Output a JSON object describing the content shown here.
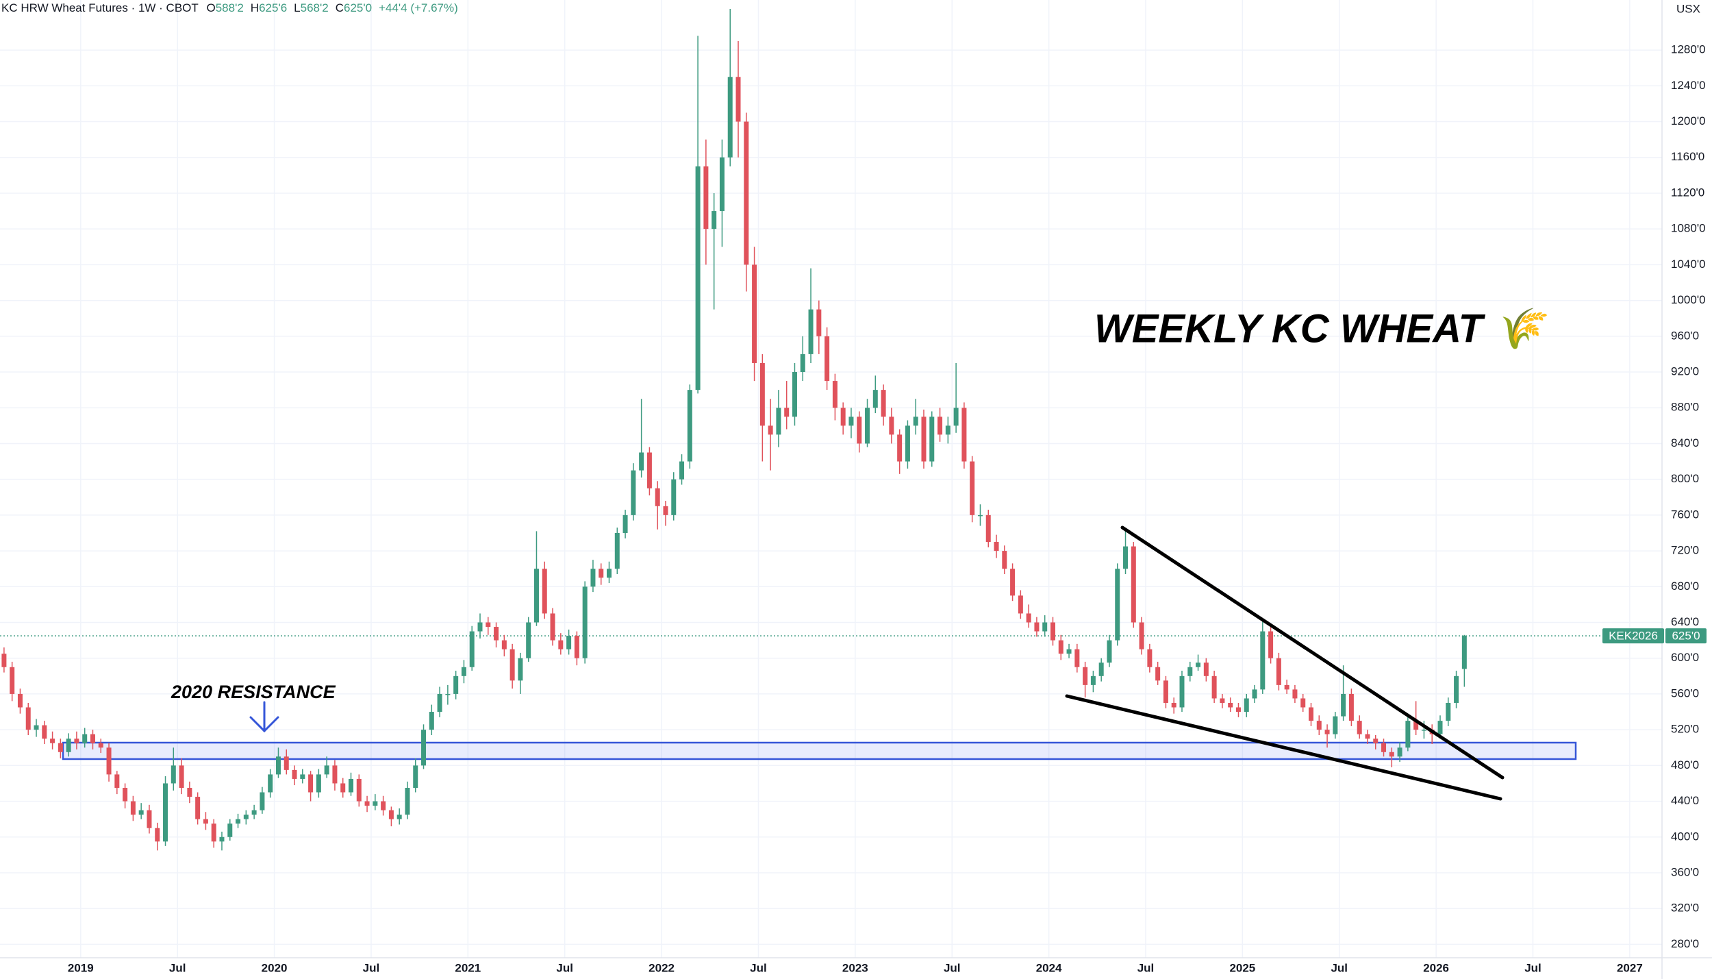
{
  "chart_data": {
    "type": "candlestick",
    "title": "KC HRW Wheat Futures · 1W · CBOT",
    "header_values": [
      {
        "label": "O",
        "text": "588'2"
      },
      {
        "label": "H",
        "text": "625'6"
      },
      {
        "label": "L",
        "text": "568'2"
      },
      {
        "label": "C",
        "text": "625'0"
      }
    ],
    "change": "+44'4 (+7.67%)",
    "unit": "USX",
    "symbol": "KEK2026",
    "last_price": {
      "value": 625,
      "label": "625'0"
    },
    "annotations": [
      "WEEKLY KC WHEAT 🌾",
      "2020 RESISTANCE"
    ],
    "up_color": "#3d9a80",
    "down_color": "#e0525b",
    "grid": true,
    "xlim": [
      "2018-08",
      "2027-03"
    ],
    "xticks": [
      {
        "value": "2019-01",
        "label": "2019"
      },
      {
        "value": "2019-07",
        "label": "Jul"
      },
      {
        "value": "2020-01",
        "label": "2020"
      },
      {
        "value": "2020-07",
        "label": "Jul"
      },
      {
        "value": "2021-01",
        "label": "2021"
      },
      {
        "value": "2021-07",
        "label": "Jul"
      },
      {
        "value": "2022-01",
        "label": "2022"
      },
      {
        "value": "2022-07",
        "label": "Jul"
      },
      {
        "value": "2023-01",
        "label": "2023"
      },
      {
        "value": "2023-07",
        "label": "Jul"
      },
      {
        "value": "2024-01",
        "label": "2024"
      },
      {
        "value": "2024-07",
        "label": "Jul"
      },
      {
        "value": "2025-01",
        "label": "2025"
      },
      {
        "value": "2025-07",
        "label": "Jul"
      },
      {
        "value": "2026-01",
        "label": "2026"
      },
      {
        "value": "2026-07",
        "label": "Jul"
      },
      {
        "value": "2027-01",
        "label": "2027"
      }
    ],
    "ylim": [
      265,
      1336
    ],
    "yticks": [
      {
        "value": 280,
        "label": "280'0"
      },
      {
        "value": 320,
        "label": "320'0"
      },
      {
        "value": 360,
        "label": "360'0"
      },
      {
        "value": 400,
        "label": "400'0"
      },
      {
        "value": 440,
        "label": "440'0"
      },
      {
        "value": 480,
        "label": "480'0"
      },
      {
        "value": 520,
        "label": "520'0"
      },
      {
        "value": 560,
        "label": "560'0"
      },
      {
        "value": 600,
        "label": "600'0"
      },
      {
        "value": 640,
        "label": "640'0"
      },
      {
        "value": 680,
        "label": "680'0"
      },
      {
        "value": 720,
        "label": "720'0"
      },
      {
        "value": 760,
        "label": "760'0"
      },
      {
        "value": 800,
        "label": "800'0"
      },
      {
        "value": 840,
        "label": "840'0"
      },
      {
        "value": 880,
        "label": "880'0"
      },
      {
        "value": 920,
        "label": "920'0"
      },
      {
        "value": 960,
        "label": "960'0"
      },
      {
        "value": 1000,
        "label": "1000'0"
      },
      {
        "value": 1040,
        "label": "1040'0"
      },
      {
        "value": 1080,
        "label": "1080'0"
      },
      {
        "value": 1120,
        "label": "1120'0"
      },
      {
        "value": 1160,
        "label": "1160'0"
      },
      {
        "value": 1200,
        "label": "1200'0"
      },
      {
        "value": 1240,
        "label": "1240'0"
      },
      {
        "value": 1280,
        "label": "1280'0"
      }
    ],
    "x": [
      "2018-08",
      "2018-08",
      "2018-09",
      "2018-09",
      "2018-10",
      "2018-10",
      "2018-11",
      "2018-11",
      "2018-12",
      "2018-12",
      "2019-01",
      "2019-01",
      "2019-02",
      "2019-02",
      "2019-03",
      "2019-03",
      "2019-04",
      "2019-04",
      "2019-05",
      "2019-05",
      "2019-06",
      "2019-06",
      "2019-07",
      "2019-07",
      "2019-08",
      "2019-08",
      "2019-09",
      "2019-09",
      "2019-10",
      "2019-10",
      "2019-11",
      "2019-11",
      "2019-12",
      "2019-12",
      "2020-01",
      "2020-01",
      "2020-02",
      "2020-02",
      "2020-03",
      "2020-03",
      "2020-04",
      "2020-04",
      "2020-05",
      "2020-05",
      "2020-06",
      "2020-06",
      "2020-07",
      "2020-07",
      "2020-08",
      "2020-08",
      "2020-09",
      "2020-09",
      "2020-10",
      "2020-10",
      "2020-11",
      "2020-11",
      "2020-12",
      "2020-12",
      "2021-01",
      "2021-01",
      "2021-02",
      "2021-02",
      "2021-03",
      "2021-03",
      "2021-04",
      "2021-04",
      "2021-05",
      "2021-05",
      "2021-06",
      "2021-06",
      "2021-07",
      "2021-07",
      "2021-08",
      "2021-08",
      "2021-09",
      "2021-09",
      "2021-10",
      "2021-10",
      "2021-11",
      "2021-11",
      "2021-12",
      "2021-12",
      "2022-01",
      "2022-01",
      "2022-02",
      "2022-02",
      "2022-03",
      "2022-03",
      "2022-04",
      "2022-04",
      "2022-05",
      "2022-05",
      "2022-06",
      "2022-06",
      "2022-07",
      "2022-07",
      "2022-08",
      "2022-08",
      "2022-09",
      "2022-09",
      "2022-10",
      "2022-10",
      "2022-11",
      "2022-11",
      "2022-12",
      "2022-12",
      "2023-01",
      "2023-01",
      "2023-02",
      "2023-02",
      "2023-03",
      "2023-03",
      "2023-04",
      "2023-04",
      "2023-05",
      "2023-05",
      "2023-06",
      "2023-06",
      "2023-07",
      "2023-07",
      "2023-08",
      "2023-08",
      "2023-09",
      "2023-09",
      "2023-10",
      "2023-10",
      "2023-11",
      "2023-11",
      "2023-12",
      "2023-12",
      "2024-01",
      "2024-01",
      "2024-02",
      "2024-02",
      "2024-03",
      "2024-03",
      "2024-04",
      "2024-04",
      "2024-05",
      "2024-05",
      "2024-06",
      "2024-06",
      "2024-07",
      "2024-07",
      "2024-08",
      "2024-08",
      "2024-09",
      "2024-09",
      "2024-10",
      "2024-10",
      "2024-11",
      "2024-11",
      "2024-12",
      "2024-12",
      "2025-01",
      "2025-01",
      "2025-02",
      "2025-02",
      "2025-03",
      "2025-03",
      "2025-04",
      "2025-04",
      "2025-05",
      "2025-05",
      "2025-06",
      "2025-06",
      "2025-07",
      "2025-07",
      "2025-08",
      "2025-08",
      "2025-09",
      "2025-09",
      "2025-10",
      "2025-10",
      "2025-11",
      "2025-11",
      "2025-12",
      "2025-12",
      "2026-01",
      "2026-01",
      "2026-02",
      "2026-02"
    ],
    "ohlc": [
      [
        605,
        612,
        584,
        590
      ],
      [
        590,
        596,
        552,
        560
      ],
      [
        560,
        566,
        538,
        545
      ],
      [
        545,
        550,
        514,
        520
      ],
      [
        520,
        532,
        512,
        525
      ],
      [
        525,
        530,
        504,
        510
      ],
      [
        510,
        518,
        498,
        505
      ],
      [
        505,
        510,
        488,
        495
      ],
      [
        495,
        516,
        490,
        510
      ],
      [
        510,
        518,
        498,
        505
      ],
      [
        505,
        522,
        500,
        515
      ],
      [
        515,
        520,
        498,
        505
      ],
      [
        505,
        510,
        494,
        500
      ],
      [
        500,
        505,
        462,
        470
      ],
      [
        470,
        474,
        448,
        455
      ],
      [
        455,
        460,
        432,
        440
      ],
      [
        440,
        446,
        418,
        425
      ],
      [
        425,
        438,
        420,
        430
      ],
      [
        430,
        436,
        404,
        410
      ],
      [
        410,
        416,
        385,
        395
      ],
      [
        395,
        468,
        390,
        460
      ],
      [
        460,
        500,
        452,
        480
      ],
      [
        480,
        488,
        448,
        455
      ],
      [
        455,
        462,
        438,
        445
      ],
      [
        445,
        450,
        414,
        420
      ],
      [
        420,
        428,
        408,
        415
      ],
      [
        415,
        420,
        388,
        395
      ],
      [
        395,
        406,
        385,
        400
      ],
      [
        400,
        420,
        396,
        415
      ],
      [
        415,
        426,
        410,
        420
      ],
      [
        420,
        430,
        414,
        425
      ],
      [
        425,
        436,
        420,
        430
      ],
      [
        430,
        456,
        426,
        450
      ],
      [
        450,
        476,
        444,
        470
      ],
      [
        470,
        500,
        466,
        490
      ],
      [
        490,
        498,
        470,
        475
      ],
      [
        475,
        480,
        458,
        465
      ],
      [
        465,
        476,
        460,
        470
      ],
      [
        470,
        474,
        440,
        450
      ],
      [
        450,
        476,
        444,
        470
      ],
      [
        470,
        490,
        466,
        480
      ],
      [
        480,
        486,
        452,
        460
      ],
      [
        460,
        466,
        444,
        450
      ],
      [
        450,
        472,
        446,
        465
      ],
      [
        465,
        470,
        434,
        440
      ],
      [
        440,
        446,
        428,
        435
      ],
      [
        435,
        448,
        430,
        440
      ],
      [
        440,
        446,
        424,
        430
      ],
      [
        430,
        434,
        412,
        420
      ],
      [
        420,
        432,
        414,
        425
      ],
      [
        425,
        462,
        420,
        455
      ],
      [
        455,
        488,
        450,
        480
      ],
      [
        480,
        526,
        476,
        520
      ],
      [
        520,
        548,
        514,
        540
      ],
      [
        540,
        568,
        534,
        560
      ],
      [
        560,
        570,
        548,
        560
      ],
      [
        560,
        586,
        554,
        580
      ],
      [
        580,
        598,
        572,
        590
      ],
      [
        590,
        636,
        586,
        630
      ],
      [
        630,
        650,
        622,
        640
      ],
      [
        640,
        646,
        626,
        635
      ],
      [
        635,
        640,
        612,
        620
      ],
      [
        620,
        626,
        602,
        610
      ],
      [
        610,
        616,
        566,
        575
      ],
      [
        575,
        606,
        560,
        600
      ],
      [
        600,
        646,
        596,
        640
      ],
      [
        640,
        742,
        636,
        700
      ],
      [
        700,
        708,
        644,
        650
      ],
      [
        650,
        656,
        614,
        620
      ],
      [
        620,
        628,
        604,
        610
      ],
      [
        610,
        632,
        604,
        625
      ],
      [
        625,
        630,
        592,
        600
      ],
      [
        600,
        686,
        594,
        680
      ],
      [
        680,
        710,
        674,
        700
      ],
      [
        700,
        706,
        682,
        690
      ],
      [
        690,
        708,
        684,
        700
      ],
      [
        700,
        746,
        694,
        740
      ],
      [
        740,
        766,
        734,
        760
      ],
      [
        760,
        818,
        754,
        810
      ],
      [
        810,
        890,
        802,
        830
      ],
      [
        830,
        836,
        782,
        790
      ],
      [
        790,
        798,
        744,
        770
      ],
      [
        770,
        776,
        748,
        760
      ],
      [
        760,
        808,
        754,
        800
      ],
      [
        800,
        828,
        794,
        820
      ],
      [
        820,
        906,
        812,
        900
      ],
      [
        900,
        1296,
        896,
        1150
      ],
      [
        1150,
        1180,
        1040,
        1080
      ],
      [
        1080,
        1120,
        990,
        1100
      ],
      [
        1100,
        1180,
        1060,
        1160
      ],
      [
        1160,
        1326,
        1150,
        1250
      ],
      [
        1250,
        1290,
        1160,
        1200
      ],
      [
        1200,
        1210,
        1010,
        1040
      ],
      [
        1040,
        1060,
        910,
        930
      ],
      [
        930,
        940,
        820,
        860
      ],
      [
        860,
        890,
        810,
        850
      ],
      [
        850,
        900,
        836,
        880
      ],
      [
        880,
        910,
        856,
        870
      ],
      [
        870,
        930,
        860,
        920
      ],
      [
        920,
        960,
        910,
        940
      ],
      [
        940,
        1036,
        930,
        990
      ],
      [
        990,
        1000,
        940,
        960
      ],
      [
        960,
        970,
        900,
        910
      ],
      [
        910,
        918,
        866,
        880
      ],
      [
        880,
        886,
        850,
        860
      ],
      [
        860,
        880,
        846,
        870
      ],
      [
        870,
        876,
        830,
        840
      ],
      [
        840,
        890,
        836,
        880
      ],
      [
        880,
        916,
        874,
        900
      ],
      [
        900,
        906,
        860,
        870
      ],
      [
        870,
        880,
        840,
        850
      ],
      [
        850,
        856,
        806,
        820
      ],
      [
        820,
        866,
        812,
        860
      ],
      [
        860,
        890,
        850,
        870
      ],
      [
        870,
        878,
        812,
        820
      ],
      [
        820,
        876,
        814,
        870
      ],
      [
        870,
        880,
        842,
        850
      ],
      [
        850,
        870,
        840,
        860
      ],
      [
        860,
        930,
        852,
        880
      ],
      [
        880,
        886,
        812,
        820
      ],
      [
        820,
        826,
        752,
        760
      ],
      [
        760,
        772,
        748,
        760
      ],
      [
        760,
        766,
        724,
        730
      ],
      [
        730,
        738,
        712,
        720
      ],
      [
        720,
        726,
        694,
        700
      ],
      [
        700,
        706,
        664,
        670
      ],
      [
        670,
        676,
        644,
        650
      ],
      [
        650,
        660,
        634,
        640
      ],
      [
        640,
        646,
        624,
        630
      ],
      [
        630,
        648,
        624,
        640
      ],
      [
        640,
        646,
        614,
        620
      ],
      [
        620,
        626,
        598,
        605
      ],
      [
        605,
        616,
        600,
        610
      ],
      [
        610,
        616,
        584,
        590
      ],
      [
        590,
        596,
        556,
        570
      ],
      [
        570,
        586,
        562,
        580
      ],
      [
        580,
        600,
        574,
        595
      ],
      [
        595,
        626,
        590,
        620
      ],
      [
        620,
        706,
        614,
        700
      ],
      [
        700,
        746,
        694,
        725
      ],
      [
        725,
        730,
        634,
        640
      ],
      [
        640,
        646,
        604,
        610
      ],
      [
        610,
        616,
        584,
        590
      ],
      [
        590,
        596,
        570,
        575
      ],
      [
        575,
        580,
        544,
        550
      ],
      [
        550,
        556,
        538,
        545
      ],
      [
        545,
        586,
        540,
        580
      ],
      [
        580,
        596,
        574,
        590
      ],
      [
        590,
        604,
        586,
        595
      ],
      [
        595,
        600,
        574,
        580
      ],
      [
        580,
        586,
        550,
        555
      ],
      [
        555,
        560,
        544,
        550
      ],
      [
        550,
        556,
        540,
        545
      ],
      [
        545,
        550,
        534,
        540
      ],
      [
        540,
        560,
        534,
        555
      ],
      [
        555,
        570,
        550,
        565
      ],
      [
        565,
        642,
        560,
        630
      ],
      [
        630,
        636,
        594,
        600
      ],
      [
        600,
        606,
        564,
        570
      ],
      [
        570,
        576,
        560,
        565
      ],
      [
        565,
        570,
        550,
        555
      ],
      [
        555,
        560,
        540,
        545
      ],
      [
        545,
        550,
        524,
        530
      ],
      [
        530,
        536,
        514,
        520
      ],
      [
        520,
        526,
        500,
        515
      ],
      [
        515,
        540,
        510,
        535
      ],
      [
        535,
        592,
        530,
        560
      ],
      [
        560,
        566,
        524,
        530
      ],
      [
        530,
        536,
        510,
        515
      ],
      [
        515,
        520,
        504,
        510
      ],
      [
        510,
        514,
        498,
        505
      ],
      [
        505,
        510,
        490,
        495
      ],
      [
        495,
        500,
        478,
        490
      ],
      [
        490,
        506,
        484,
        500
      ],
      [
        500,
        536,
        496,
        530
      ],
      [
        530,
        552,
        514,
        520
      ],
      [
        520,
        530,
        510,
        520
      ],
      [
        520,
        526,
        504,
        515
      ],
      [
        515,
        536,
        510,
        530
      ],
      [
        530,
        556,
        524,
        550
      ],
      [
        550,
        586,
        544,
        580
      ],
      [
        588,
        626,
        568,
        625
      ]
    ]
  }
}
